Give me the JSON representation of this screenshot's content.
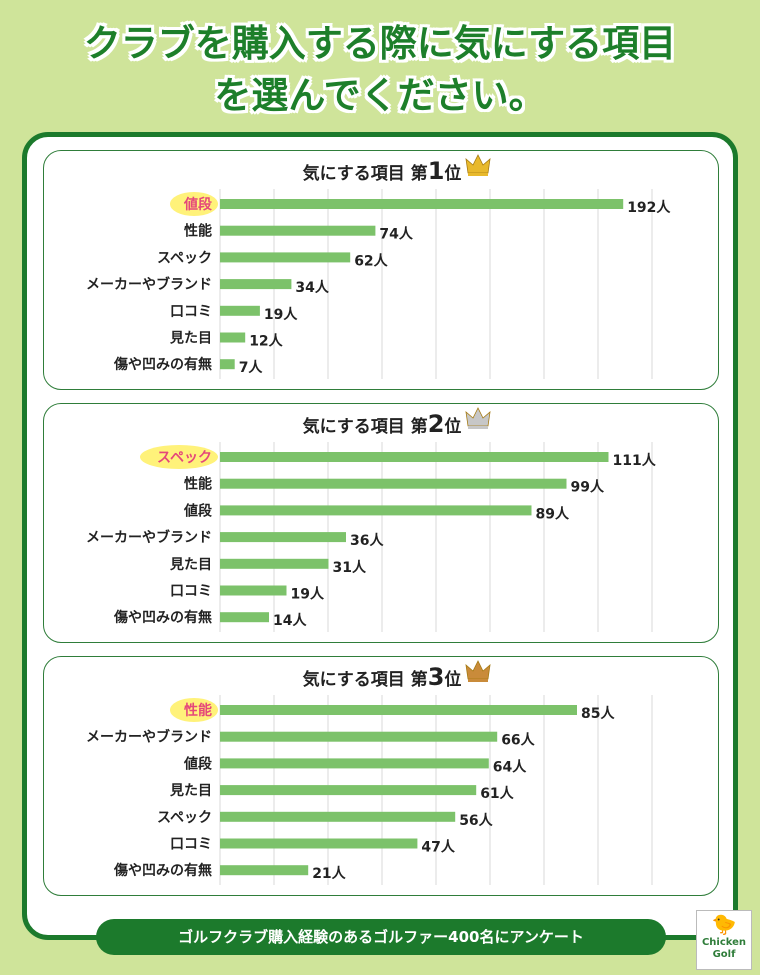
{
  "page": {
    "title_line1": "クラブを購入する際に気にする項目",
    "title_line2": "を選んでください。",
    "footer": "ゴルフクラブ購入経験のあるゴルファー400名にアンケート",
    "logo_line1": "Chicken",
    "logo_line2": "Golf",
    "colors": {
      "background": "#cfe49a",
      "frame": "#1c7a2c",
      "bar": "#7cc26a",
      "highlight": "#e5487a",
      "marker": "#fff27a"
    }
  },
  "chart_data": [
    {
      "type": "bar",
      "orientation": "horizontal",
      "title": "気にする項目 第1位",
      "title_prefix": "気にする項目 第",
      "title_rank": "1",
      "title_suffix": "位",
      "crown": "gold-crown-icon",
      "unit": "人",
      "categories": [
        "値段",
        "性能",
        "スペック",
        "メーカーやブランド",
        "口コミ",
        "見た目",
        "傷や凹みの有無"
      ],
      "values": [
        192,
        74,
        62,
        34,
        19,
        12,
        7
      ],
      "highlight_index": 0,
      "xlim": [
        0,
        200
      ],
      "grid": true
    },
    {
      "type": "bar",
      "orientation": "horizontal",
      "title": "気にする項目 第2位",
      "title_prefix": "気にする項目 第",
      "title_rank": "2",
      "title_suffix": "位",
      "crown": "silver-crown-icon",
      "unit": "人",
      "categories": [
        "スペック",
        "性能",
        "値段",
        "メーカーやブランド",
        "見た目",
        "口コミ",
        "傷や凹みの有無"
      ],
      "values": [
        111,
        99,
        89,
        36,
        31,
        19,
        14
      ],
      "highlight_index": 0,
      "xlim": [
        0,
        120
      ],
      "grid": true
    },
    {
      "type": "bar",
      "orientation": "horizontal",
      "title": "気にする項目 第3位",
      "title_prefix": "気にする項目 第",
      "title_rank": "3",
      "title_suffix": "位",
      "crown": "bronze-crown-icon",
      "unit": "人",
      "categories": [
        "性能",
        "メーカーやブランド",
        "値段",
        "見た目",
        "スペック",
        "口コミ",
        "傷や凹みの有無"
      ],
      "values": [
        85,
        66,
        64,
        61,
        56,
        47,
        21
      ],
      "highlight_index": 0,
      "xlim": [
        0,
        100
      ],
      "grid": true
    }
  ]
}
